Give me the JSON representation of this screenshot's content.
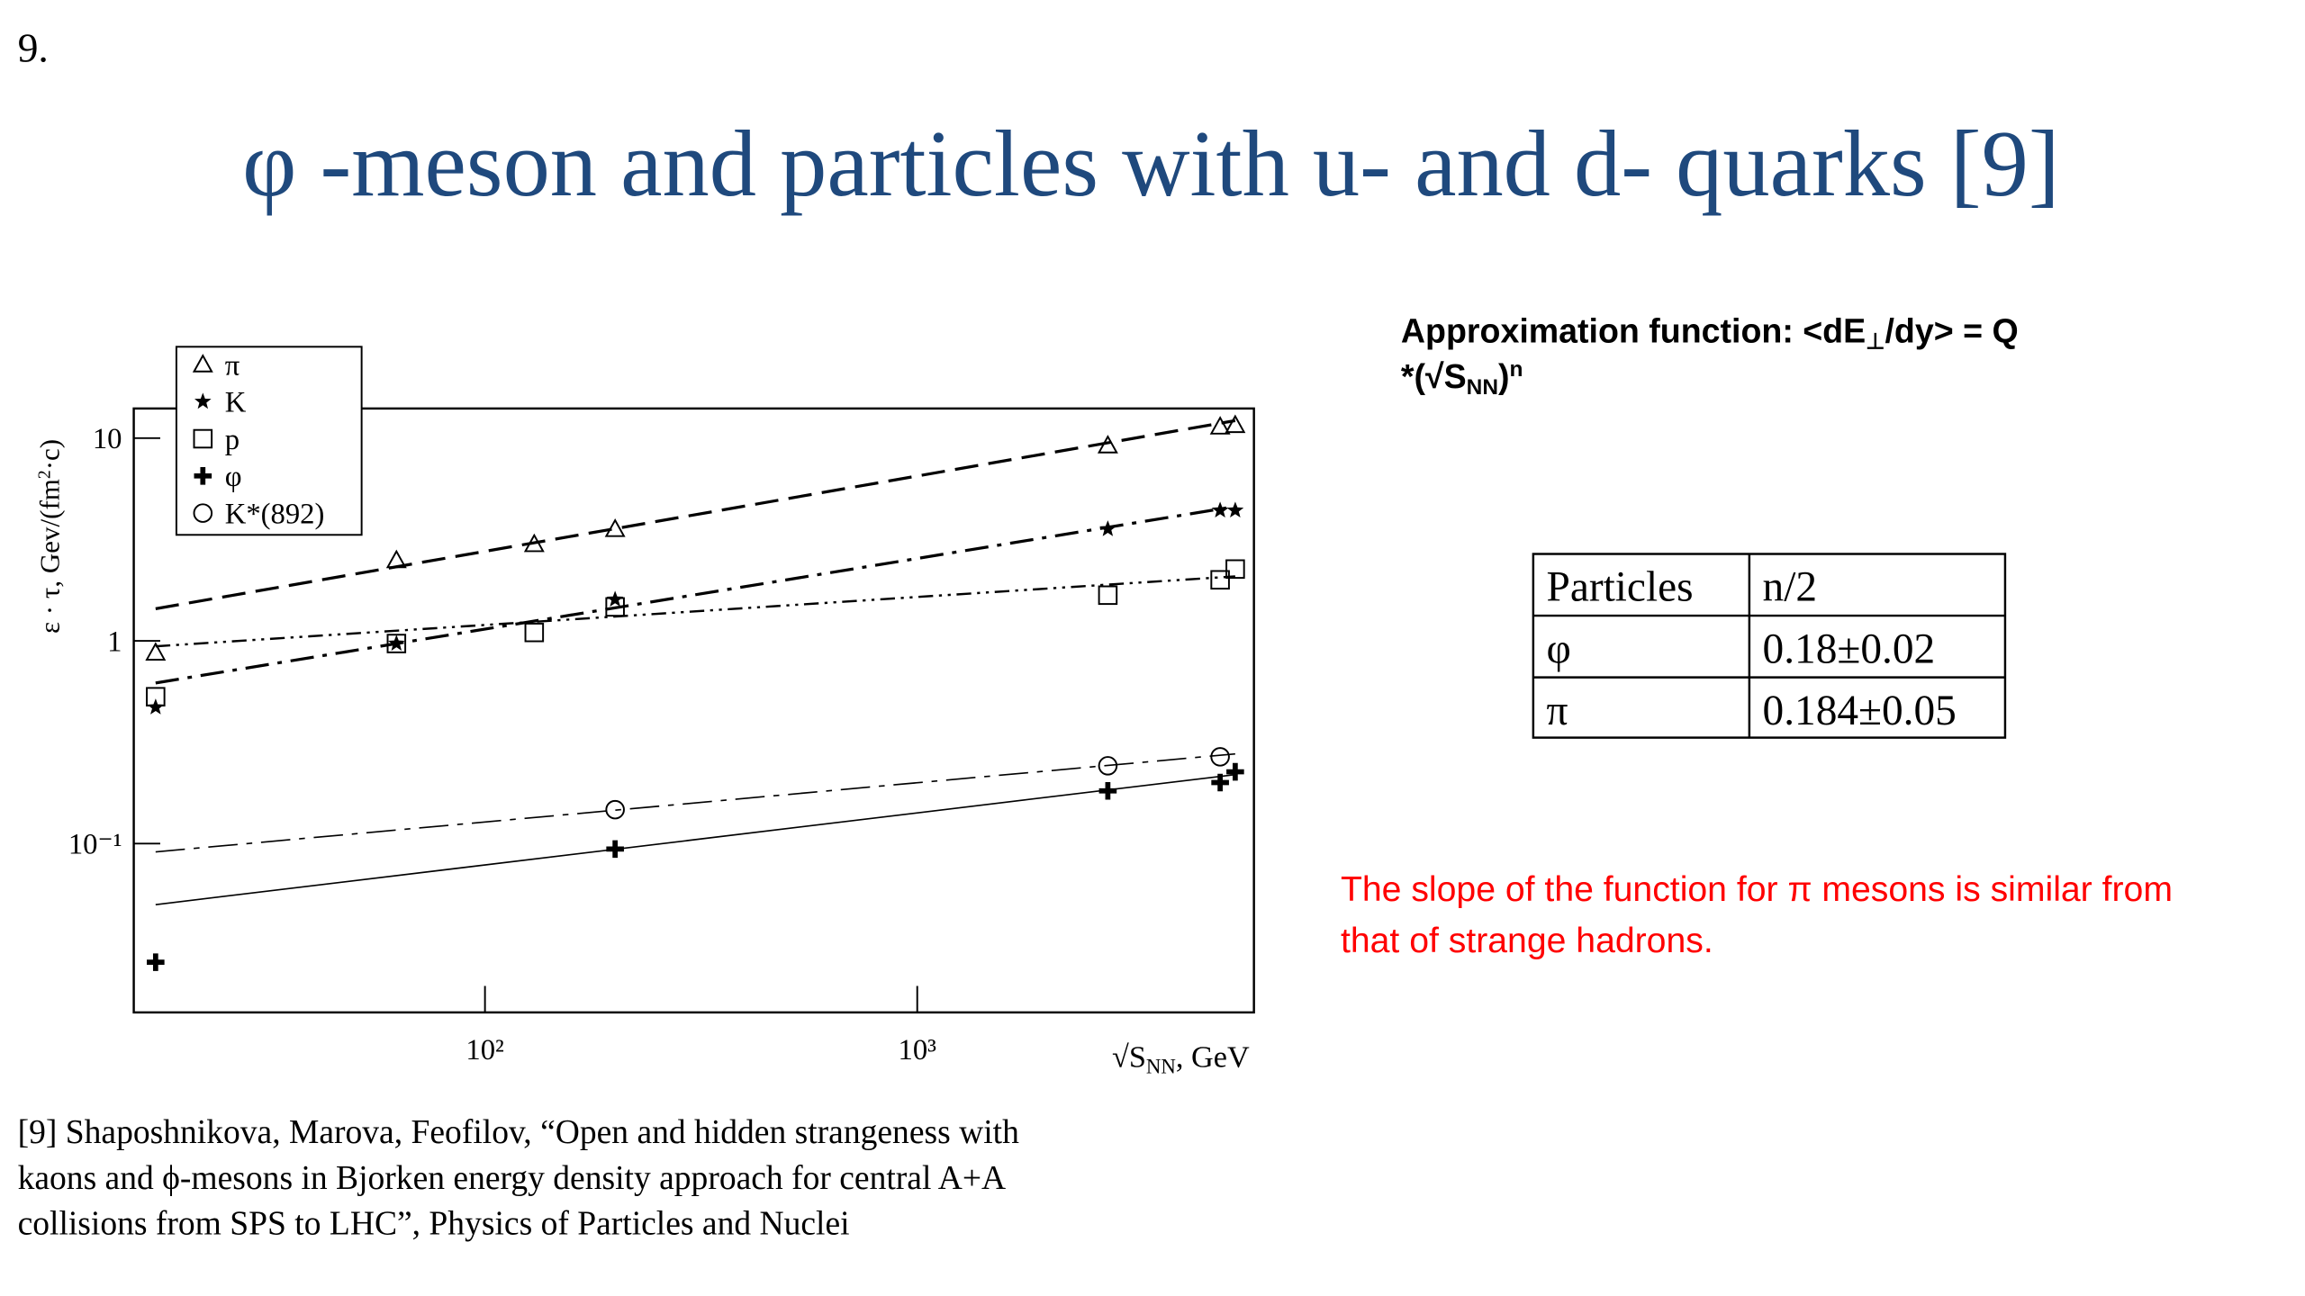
{
  "slide_number": "9.",
  "title": "φ -meson and particles with u- and d- quarks [9]",
  "chart_data": {
    "type": "scatter",
    "xlog": true,
    "ylog": true,
    "xlim": [
      15.4,
      6010
    ],
    "ylim": [
      0.0147,
      14
    ],
    "xticks": [
      {
        "value": 100,
        "label": "10²"
      },
      {
        "value": 1000,
        "label": "10³"
      }
    ],
    "yticks": [
      {
        "value": 0.1,
        "label": "10⁻¹"
      },
      1,
      10
    ],
    "xlabel": [
      "√S",
      "NN",
      ", GeV"
    ],
    "ylabel": [
      "ε · τ, Gev/(fm",
      "2",
      "·c)"
    ],
    "series": [
      {
        "name": "π",
        "marker": "triangle",
        "color": "#000000",
        "x": [
          17.3,
          62.4,
          130,
          200,
          2760,
          5020,
          5440
        ],
        "values": [
          0.875,
          2.5,
          3.0,
          3.56,
          9.2,
          11.4,
          11.6
        ],
        "fit": {
          "x": [
            17.3,
            5440
          ],
          "values": [
            1.44,
            12.2
          ],
          "dash": "16,7",
          "width": 2
        }
      },
      {
        "name": "K",
        "marker": "star",
        "color": "#000000",
        "x": [
          17.3,
          62.4,
          200,
          2760,
          5020,
          5440
        ],
        "values": [
          0.47,
          0.97,
          1.6,
          3.56,
          4.4,
          4.4
        ],
        "fit": {
          "x": [
            17.3,
            5440
          ],
          "values": [
            0.62,
            4.6
          ],
          "dash": "16,6,3,6",
          "width": 2
        }
      },
      {
        "name": "p",
        "marker": "square",
        "color": "#000000",
        "x": [
          17.3,
          62.4,
          130,
          200,
          2760,
          5020,
          5440
        ],
        "values": [
          0.53,
          0.97,
          1.1,
          1.47,
          1.68,
          2.0,
          2.26
        ],
        "fit": {
          "x": [
            17.3,
            5440
          ],
          "values": [
            0.94,
            2.08
          ],
          "dash": "10,4,2,4,2,4",
          "width": 1.5
        }
      },
      {
        "name": "φ",
        "marker": "plus",
        "color": "#000000",
        "x": [
          17.3,
          200,
          2760,
          5020,
          5440
        ],
        "values": [
          0.026,
          0.094,
          0.182,
          0.2,
          0.226
        ],
        "fit": {
          "x": [
            17.3,
            5440
          ],
          "values": [
            0.05,
            0.219
          ],
          "dash": "none",
          "width": 1
        }
      },
      {
        "name": "K*(892)",
        "marker": "circle",
        "color": "#000000",
        "x": [
          200,
          2760,
          5020
        ],
        "values": [
          0.147,
          0.242,
          0.268
        ],
        "fit": {
          "x": [
            17.3,
            5440
          ],
          "values": [
            0.091,
            0.277
          ],
          "dash": "20,6,4,6",
          "width": 1
        }
      }
    ]
  },
  "approximation": {
    "line1": [
      "Approximation function: <dE",
      "⊥",
      "/dy> = Q"
    ],
    "line2": [
      "*(√S",
      "NN",
      ")",
      "n"
    ]
  },
  "table": {
    "header": [
      "Particles",
      "n/2"
    ],
    "rows": [
      [
        "φ",
        "0.18±0.02"
      ],
      [
        "π",
        "0.184±0.05"
      ]
    ]
  },
  "note": [
    "The slope of the function for π mesons is similar from",
    "that of strange hadrons."
  ],
  "reference": [
    "[9] Shaposhnikova, Marova, Feofilov, “Open and hidden strangeness with",
    "kaons and ϕ-mesons in Bjorken energy density approach for central A+A",
    "collisions from SPS to LHC”, Physics of Particles and Nuclei"
  ]
}
